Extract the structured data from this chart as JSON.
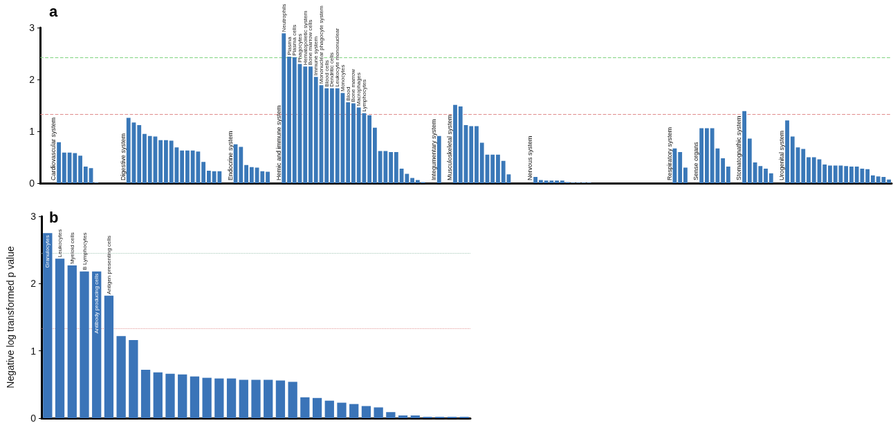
{
  "chart_data": [
    {
      "type": "bar",
      "title": "a",
      "categories": [
        null,
        null,
        "Cardiovascular system",
        null,
        null,
        null,
        null,
        null,
        null,
        null,
        null,
        null,
        null,
        null,
        null,
        "Digestive system",
        null,
        null,
        null,
        null,
        null,
        null,
        null,
        null,
        null,
        null,
        null,
        null,
        null,
        null,
        null,
        null,
        null,
        null,
        null,
        "Endocrine system",
        null,
        null,
        null,
        null,
        null,
        null,
        null,
        null,
        "Hemic and immune system",
        null,
        null,
        null,
        null,
        null,
        null,
        null,
        null,
        null,
        null,
        null,
        null,
        null,
        null,
        null,
        null,
        null,
        null,
        null,
        null,
        null,
        null,
        null,
        null,
        null,
        null,
        null,
        null,
        "Integumentary system",
        null,
        null,
        "Musculoskeletal system",
        null,
        null,
        null,
        null,
        null,
        null,
        null,
        null,
        null,
        null,
        null,
        null,
        null,
        null,
        "Nervous system",
        null,
        null,
        null,
        null,
        null,
        null,
        null,
        null,
        null,
        null,
        null,
        null,
        null,
        null,
        null,
        null,
        null,
        null,
        null,
        null,
        null,
        null,
        null,
        null,
        null,
        "Respiratory system",
        null,
        null,
        null,
        null,
        "Sense organs",
        null,
        null,
        null,
        null,
        null,
        null,
        null,
        "Stomatognathic system",
        null,
        null,
        null,
        null,
        null,
        null,
        null,
        "Urogenital system",
        null,
        null,
        null,
        null,
        null,
        null,
        null,
        null,
        null,
        null,
        null,
        null,
        null,
        null,
        null,
        null,
        null,
        null,
        null,
        null
      ],
      "values": [
        null,
        null,
        null,
        0.79,
        0.59,
        0.59,
        0.58,
        0.53,
        0.32,
        0.29,
        0.01,
        null,
        null,
        null,
        null,
        null,
        1.26,
        1.17,
        1.12,
        0.95,
        0.91,
        0.9,
        0.83,
        0.83,
        0.82,
        0.69,
        0.63,
        0.63,
        0.63,
        0.61,
        0.41,
        0.24,
        0.23,
        0.23,
        null,
        null,
        0.75,
        0.7,
        0.35,
        0.31,
        0.3,
        0.23,
        0.22,
        null,
        null,
        2.89,
        2.44,
        2.43,
        2.3,
        2.25,
        2.25,
        2.05,
        1.89,
        1.83,
        1.83,
        1.83,
        1.74,
        1.56,
        1.54,
        1.46,
        1.35,
        1.31,
        1.07,
        0.62,
        0.62,
        0.6,
        0.6,
        0.28,
        0.18,
        0.1,
        0.06,
        0.02,
        null,
        null,
        0.91,
        null,
        null,
        1.51,
        1.48,
        1.12,
        1.1,
        1.1,
        0.78,
        0.55,
        0.55,
        0.55,
        0.43,
        0.17,
        null,
        null,
        null,
        null,
        0.12,
        0.06,
        0.05,
        0.05,
        0.05,
        0.05,
        0.02,
        0.01,
        0.01,
        0.01,
        0.01,
        null,
        null,
        null,
        null,
        null,
        null,
        null,
        null,
        null,
        null,
        null,
        null,
        null,
        null,
        null,
        0.67,
        0.6,
        0.3,
        null,
        null,
        1.06,
        1.06,
        1.06,
        0.67,
        0.48,
        0.32,
        null,
        null,
        1.39,
        0.86,
        0.4,
        0.33,
        0.28,
        0.19,
        null,
        null,
        1.21,
        0.9,
        0.69,
        0.66,
        0.5,
        0.5,
        0.46,
        0.36,
        0.34,
        0.34,
        0.34,
        0.33,
        0.32,
        0.32,
        0.28,
        0.27,
        0.15,
        0.13,
        0.12,
        0.07
      ],
      "value_labels": [
        null,
        null,
        null,
        null,
        null,
        null,
        null,
        null,
        null,
        null,
        null,
        null,
        null,
        null,
        null,
        null,
        null,
        null,
        null,
        null,
        null,
        null,
        null,
        null,
        null,
        null,
        null,
        null,
        null,
        null,
        null,
        null,
        null,
        null,
        null,
        null,
        null,
        null,
        null,
        null,
        null,
        null,
        null,
        null,
        null,
        "Neutrophils",
        "Plasma",
        "Plasma cells",
        "Phagocytes",
        "Hematopoietic system",
        "Bone marrow cells",
        "Immune system",
        "Mononuclear phagocyte system",
        "Blood cells",
        "Dendritic cells",
        "Leukocyte mononuclear",
        "Monocytes",
        "Blood",
        "Bone marrow",
        "Macrophages",
        "Lymphocytes",
        null,
        null,
        null,
        null,
        null,
        null,
        null,
        null,
        null,
        null,
        null,
        null,
        null,
        null,
        null,
        null,
        null,
        null,
        null,
        null,
        null,
        null,
        null,
        null,
        null,
        null,
        null,
        null,
        null,
        null,
        null,
        null,
        null,
        null,
        null,
        null,
        null,
        null,
        null,
        null,
        null,
        null,
        null,
        null,
        null,
        null,
        null,
        null,
        null,
        null,
        null,
        null,
        null,
        null,
        null,
        null,
        null,
        null,
        null,
        null,
        null,
        null,
        null,
        null,
        null,
        null,
        null,
        null,
        null,
        null,
        null,
        null,
        null,
        null,
        null,
        null,
        null,
        null,
        null,
        null,
        null,
        null,
        null,
        null,
        null,
        null,
        null,
        null,
        null,
        null,
        null,
        null,
        null,
        null,
        null,
        null,
        null,
        null
      ],
      "color": "#3a78b8",
      "ylim": [
        0,
        3
      ],
      "yticks": [
        0,
        1,
        2,
        3
      ],
      "ref_lines": [
        {
          "axis": "y",
          "value": 2.42,
          "color": "#7fd37f",
          "line_style": "dashed"
        },
        {
          "axis": "y",
          "value": 1.33,
          "color": "#e08a8a",
          "line_style": "dashed"
        }
      ]
    },
    {
      "type": "bar",
      "title": "b",
      "ylabel": "Negative log transformed p value",
      "categories": [
        null,
        null,
        null,
        null,
        null,
        null,
        null,
        null,
        null,
        null,
        null,
        null,
        null,
        null,
        null,
        null,
        null,
        null,
        null,
        null,
        null,
        null,
        null,
        null,
        null,
        null,
        null,
        null,
        null,
        null,
        null,
        null,
        null,
        null,
        null
      ],
      "values": [
        2.75,
        2.37,
        2.27,
        2.18,
        2.18,
        1.82,
        1.22,
        1.16,
        0.72,
        0.68,
        0.66,
        0.65,
        0.62,
        0.6,
        0.59,
        0.59,
        0.57,
        0.57,
        0.57,
        0.56,
        0.54,
        0.31,
        0.3,
        0.26,
        0.23,
        0.21,
        0.18,
        0.16,
        0.09,
        0.04,
        0.04,
        0.02,
        0.02,
        0.02,
        0.02
      ],
      "value_labels": [
        "Granulocytes",
        "Leukocytes",
        "Myeloid cells",
        "B Lymphocytes",
        "Antibody producing cells",
        "Antigen presenting cells",
        null,
        null,
        null,
        null,
        null,
        null,
        null,
        null,
        null,
        null,
        null,
        null,
        null,
        null,
        null,
        null,
        null,
        null,
        null,
        null,
        null,
        null,
        null,
        null,
        null,
        null,
        null,
        null,
        null
      ],
      "color": "#3a74b8",
      "ylim": [
        0,
        3
      ],
      "yticks": [
        0,
        1,
        2,
        3
      ],
      "ref_lines": [
        {
          "axis": "y",
          "value": 2.45,
          "color": "#a7c9b8",
          "line_style": "dotted"
        },
        {
          "axis": "y",
          "value": 1.33,
          "color": "#e49a9a",
          "line_style": "dotted"
        }
      ]
    }
  ]
}
